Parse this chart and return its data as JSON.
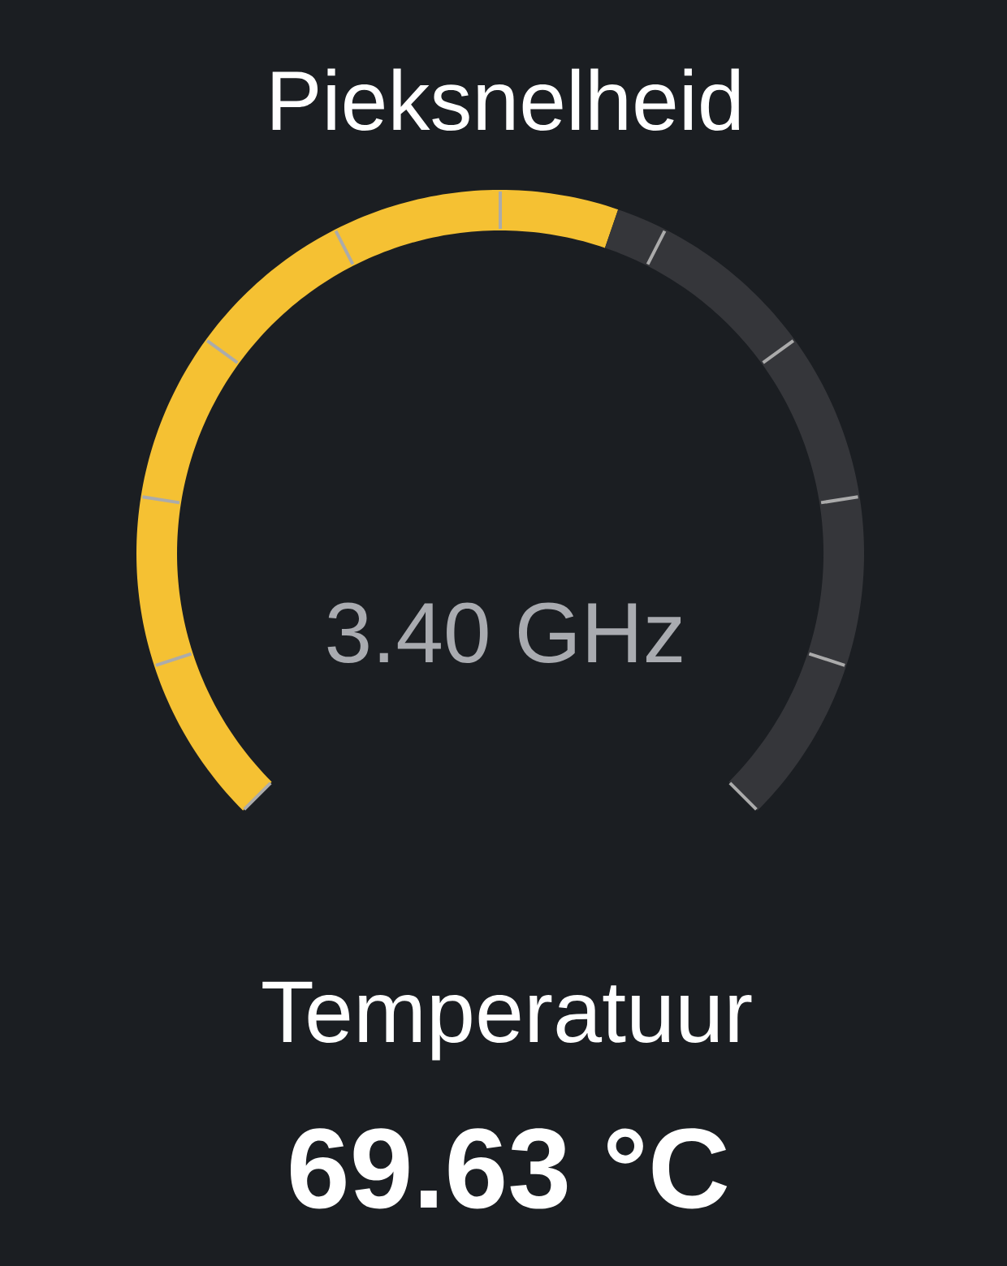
{
  "chart_data": {
    "type": "donut",
    "title": "Pieksnelheid",
    "categories": [
      null,
      null
    ],
    "values": [
      57,
      43
    ],
    "colors": [
      "#f5c133",
      "#35363a"
    ],
    "annotations": [
      "3.40 GHz",
      "Temperatuur",
      "69.63 °C"
    ]
  }
}
